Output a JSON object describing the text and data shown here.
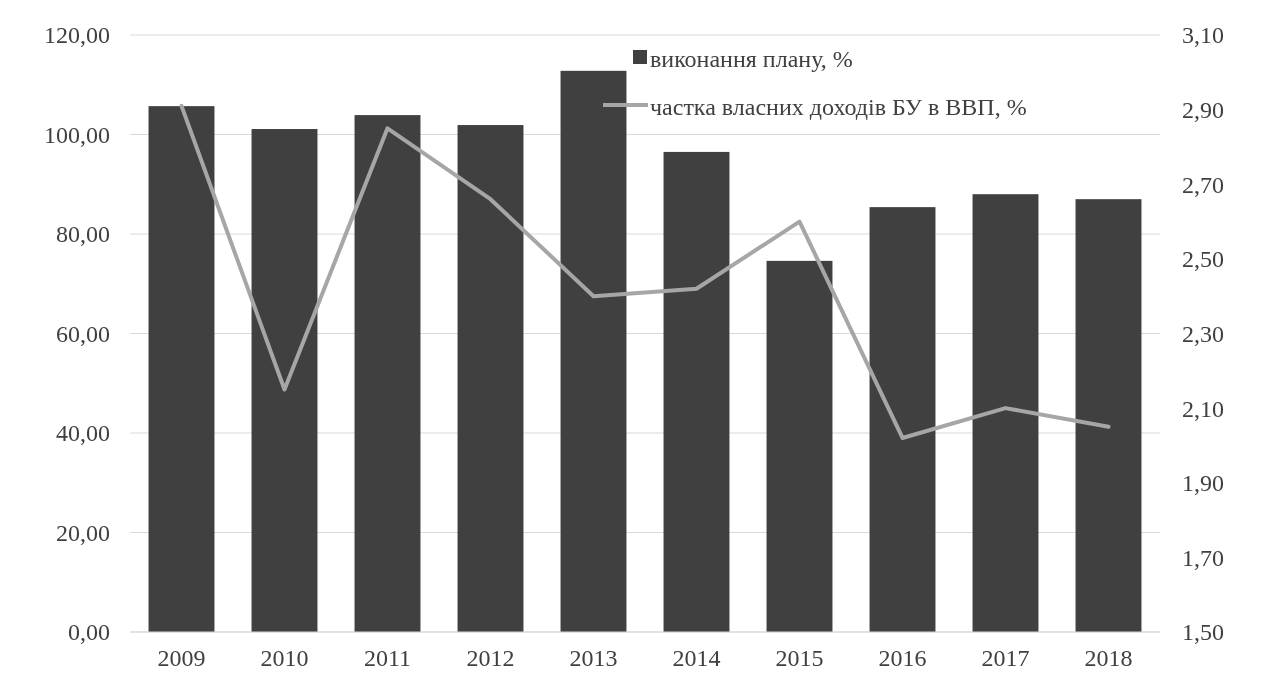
{
  "chart_data": {
    "type": "bar",
    "categories": [
      "2009",
      "2010",
      "2011",
      "2012",
      "2013",
      "2014",
      "2015",
      "2016",
      "2017",
      "2018"
    ],
    "series": [
      {
        "name": "виконання плану, %",
        "color": "#404040",
        "values": [
          105.7,
          101.1,
          103.9,
          101.9,
          112.8,
          96.5,
          74.6,
          85.4,
          88.0,
          87.0
        ]
      },
      {
        "name": "частка власних доходів БУ в ВВП, %",
        "type": "line",
        "axis": "y2",
        "color": "#a6a6a6",
        "values": [
          2.91,
          2.15,
          2.85,
          2.66,
          2.4,
          2.42,
          2.6,
          2.02,
          2.1,
          2.05
        ]
      }
    ],
    "ylim": [
      0,
      120
    ],
    "yticks": [
      {
        "value": 0,
        "label": "0,00"
      },
      {
        "value": 20,
        "label": "20,00"
      },
      {
        "value": 40,
        "label": "40,00"
      },
      {
        "value": 60,
        "label": "60,00"
      },
      {
        "value": 80,
        "label": "80,00"
      },
      {
        "value": 100,
        "label": "100,00"
      },
      {
        "value": 120,
        "label": "120,00"
      }
    ],
    "y2lim": [
      1.5,
      3.1
    ],
    "y2ticks": [
      {
        "value": 1.5,
        "label": "1,50"
      },
      {
        "value": 1.7,
        "label": "1,70"
      },
      {
        "value": 1.9,
        "label": "1,90"
      },
      {
        "value": 2.1,
        "label": "2,10"
      },
      {
        "value": 2.3,
        "label": "2,30"
      },
      {
        "value": 2.5,
        "label": "2,50"
      },
      {
        "value": 2.7,
        "label": "2,70"
      },
      {
        "value": 2.9,
        "label": "2,90"
      },
      {
        "value": 3.1,
        "label": "3,10"
      }
    ],
    "grid": "y",
    "legend": "top",
    "marker": "none",
    "line_style": "solid"
  }
}
